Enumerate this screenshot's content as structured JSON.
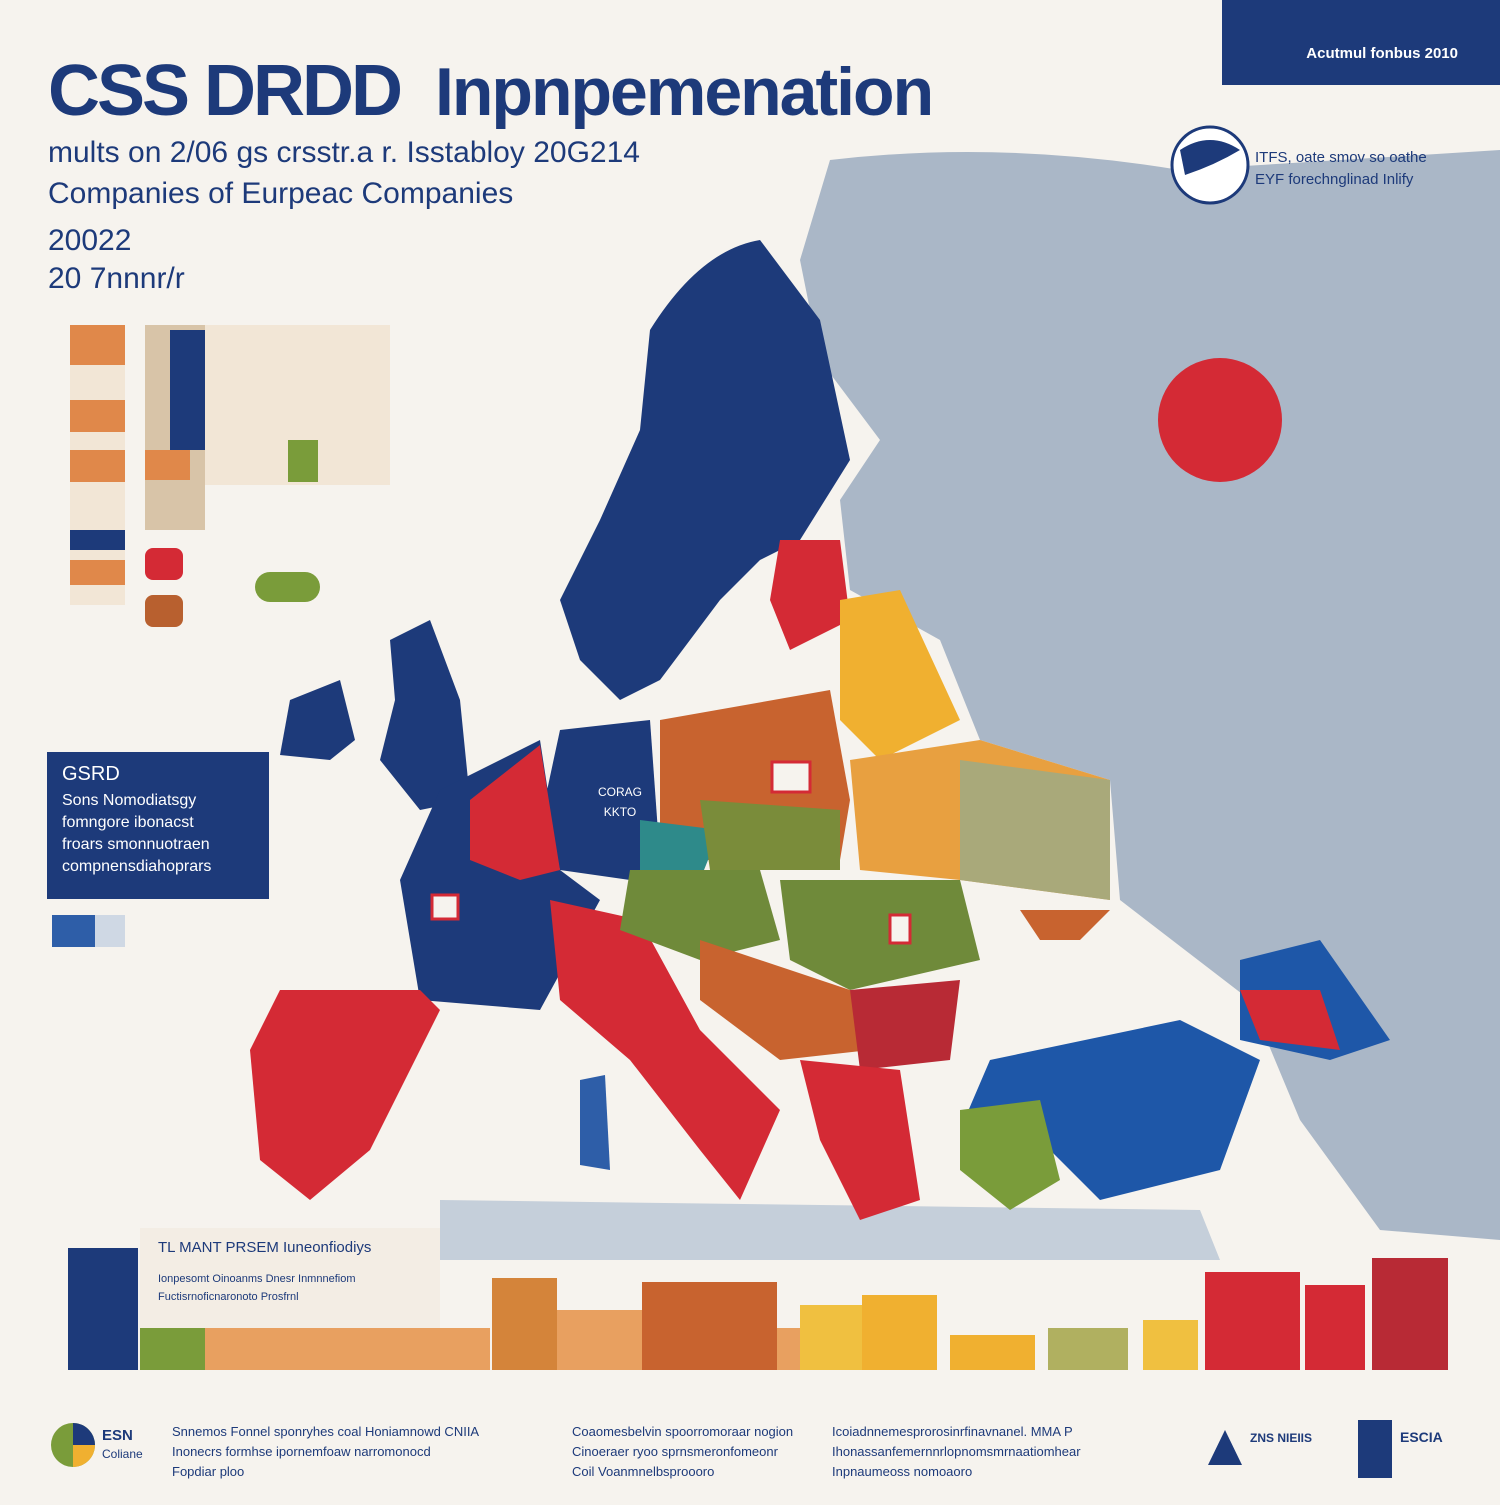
{
  "header": {
    "badge": "Acutmul fonbus 2010",
    "title_left": "CSS DRDD",
    "title_right": "Inpnpemenation",
    "subtitle": "mults on 2/06 gs crsstr.a r. Isstabloy 20G214",
    "subtitle_2": "Companies of Eurpeac Companies",
    "year_1": "20022",
    "year_2": "20 7nnnr/r"
  },
  "logo": {
    "line_1": "ITFS, oate smov so oathe",
    "line_2": "EYF forechnglinad Inlify"
  },
  "info_box": {
    "heading": "GSRD",
    "lines": [
      "Sons Nomodiatsgy",
      "fomngore ibonacst",
      "froars smonnuotraen",
      "compnensdiahoprars"
    ]
  },
  "map_labels": [
    "CORAG",
    "KKTO"
  ],
  "bottom_panel": {
    "heading": "TL MANT PRSEM Iuneonfiodiys",
    "line_1": "Ionpesomt Oinoanms Dnesr Inmnnefiom",
    "line_2": "Fuctisrnoficnaronoto Prosfrnl"
  },
  "footer": {
    "left_logo_1": "ESN",
    "left_logo_2": "Coliane",
    "col_1": [
      "Snnemos Fonnel sponryhes coal Honiamnowd CNIIA",
      "Inonecrs formhse ipornemfoaw narromonocd",
      "Fopdiar ploo"
    ],
    "col_2": [
      "Coaomesbelvin spoorromoraar nogion",
      "Cinoeraer ryoo sprnsmeronfomeonr",
      "Coil Voanmnelbsproooro"
    ],
    "col_3": [
      "Icoiadnnemesprorosinrfinavnanel. MMA P",
      "Ihonassanfemernnrlopnomsmrnaatiomhear",
      "Inpnaumeoss nomoaoro"
    ],
    "right_logo_1": "ZNS NIEIIS",
    "right_logo_2": "ESCIA"
  }
}
